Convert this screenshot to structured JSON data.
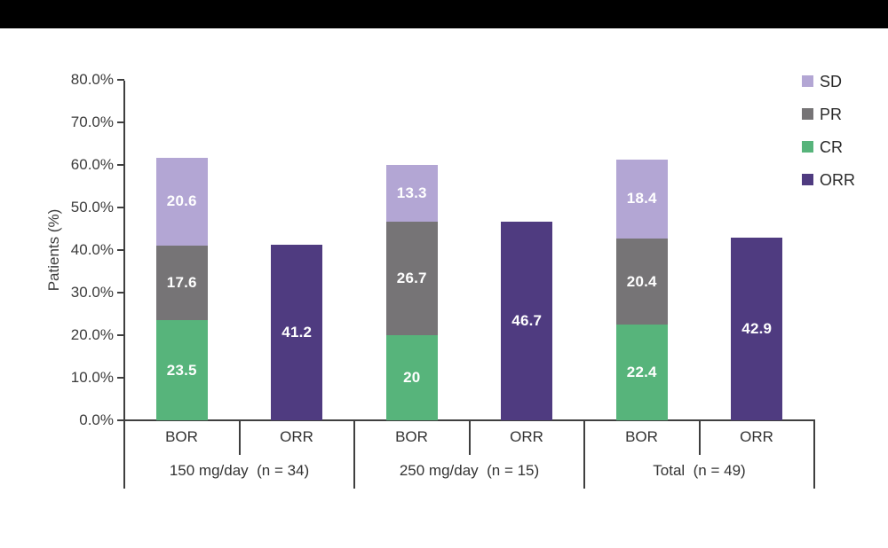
{
  "banner": {},
  "chart_data": {
    "type": "bar",
    "stacked": true,
    "title": "",
    "ylabel": "Patients (%)",
    "ylim": [
      0,
      80
    ],
    "grid": false,
    "legend_position": "top-right",
    "y_ticks": [
      "0.0%",
      "10.0%",
      "20.0%",
      "30.0%",
      "40.0%",
      "50.0%",
      "60.0%",
      "70.0%",
      "80.0%"
    ],
    "legend": [
      {
        "key": "SD",
        "label": "SD",
        "color": "#b3a6d4"
      },
      {
        "key": "PR",
        "label": "PR",
        "color": "#767476"
      },
      {
        "key": "CR",
        "label": "CR",
        "color": "#57b47b"
      },
      {
        "key": "ORR",
        "label": "ORR",
        "color": "#4f3b80"
      }
    ],
    "groups": [
      {
        "label": "150 mg/day  (n = 34)",
        "bars": [
          {
            "label": "BOR",
            "segments": [
              {
                "series": "CR",
                "value": 23.5,
                "display": "23.5"
              },
              {
                "series": "PR",
                "value": 17.6,
                "display": "17.6"
              },
              {
                "series": "SD",
                "value": 20.6,
                "display": "20.6"
              }
            ]
          },
          {
            "label": "ORR",
            "segments": [
              {
                "series": "ORR",
                "value": 41.2,
                "display": "41.2"
              }
            ]
          }
        ]
      },
      {
        "label": "250 mg/day  (n = 15)",
        "bars": [
          {
            "label": "BOR",
            "segments": [
              {
                "series": "CR",
                "value": 20.0,
                "display": "20"
              },
              {
                "series": "PR",
                "value": 26.7,
                "display": "26.7"
              },
              {
                "series": "SD",
                "value": 13.3,
                "display": "13.3"
              }
            ]
          },
          {
            "label": "ORR",
            "segments": [
              {
                "series": "ORR",
                "value": 46.7,
                "display": "46.7"
              }
            ]
          }
        ]
      },
      {
        "label": "Total  (n = 49)",
        "bars": [
          {
            "label": "BOR",
            "segments": [
              {
                "series": "CR",
                "value": 22.4,
                "display": "22.4"
              },
              {
                "series": "PR",
                "value": 20.4,
                "display": "20.4"
              },
              {
                "series": "SD",
                "value": 18.4,
                "display": "18.4"
              }
            ]
          },
          {
            "label": "ORR",
            "segments": [
              {
                "series": "ORR",
                "value": 42.9,
                "display": "42.9"
              }
            ]
          }
        ]
      }
    ]
  }
}
